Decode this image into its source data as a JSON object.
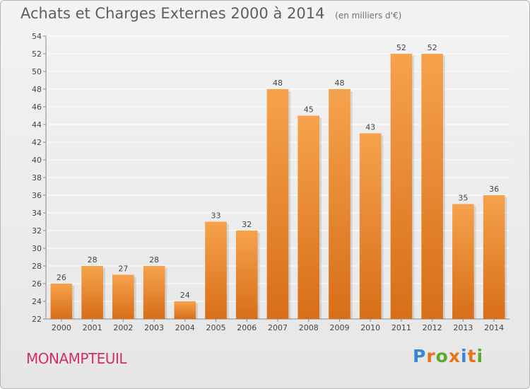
{
  "title": "Achats et Charges Externes 2000 à 2014",
  "subtitle": "(en milliers d'€)",
  "commune": "MONAMPTEUIL",
  "logo": {
    "text": "Proxiti",
    "colors": [
      "#3a86d4",
      "#e8731a",
      "#5aaa2c",
      "#e8731a",
      "#3a86d4",
      "#e8731a",
      "#5aaa2c"
    ]
  },
  "colors": {
    "bar_top": "#f6a24c",
    "bar_bottom": "#d86e18",
    "grid": "#ffffff",
    "axis": "#8a8a8a"
  },
  "chart_data": {
    "type": "bar",
    "categories": [
      "2000",
      "2001",
      "2002",
      "2003",
      "2004",
      "2005",
      "2006",
      "2007",
      "2008",
      "2009",
      "2010",
      "2011",
      "2012",
      "2013",
      "2014"
    ],
    "values": [
      26,
      28,
      27,
      28,
      24,
      33,
      32,
      48,
      45,
      48,
      43,
      52,
      52,
      35,
      36
    ],
    "ylim": [
      22,
      54
    ],
    "yticks": [
      22,
      24,
      26,
      28,
      30,
      32,
      34,
      36,
      38,
      40,
      42,
      44,
      46,
      48,
      50,
      52,
      54
    ],
    "grid": true,
    "xlabel": "",
    "ylabel": ""
  }
}
